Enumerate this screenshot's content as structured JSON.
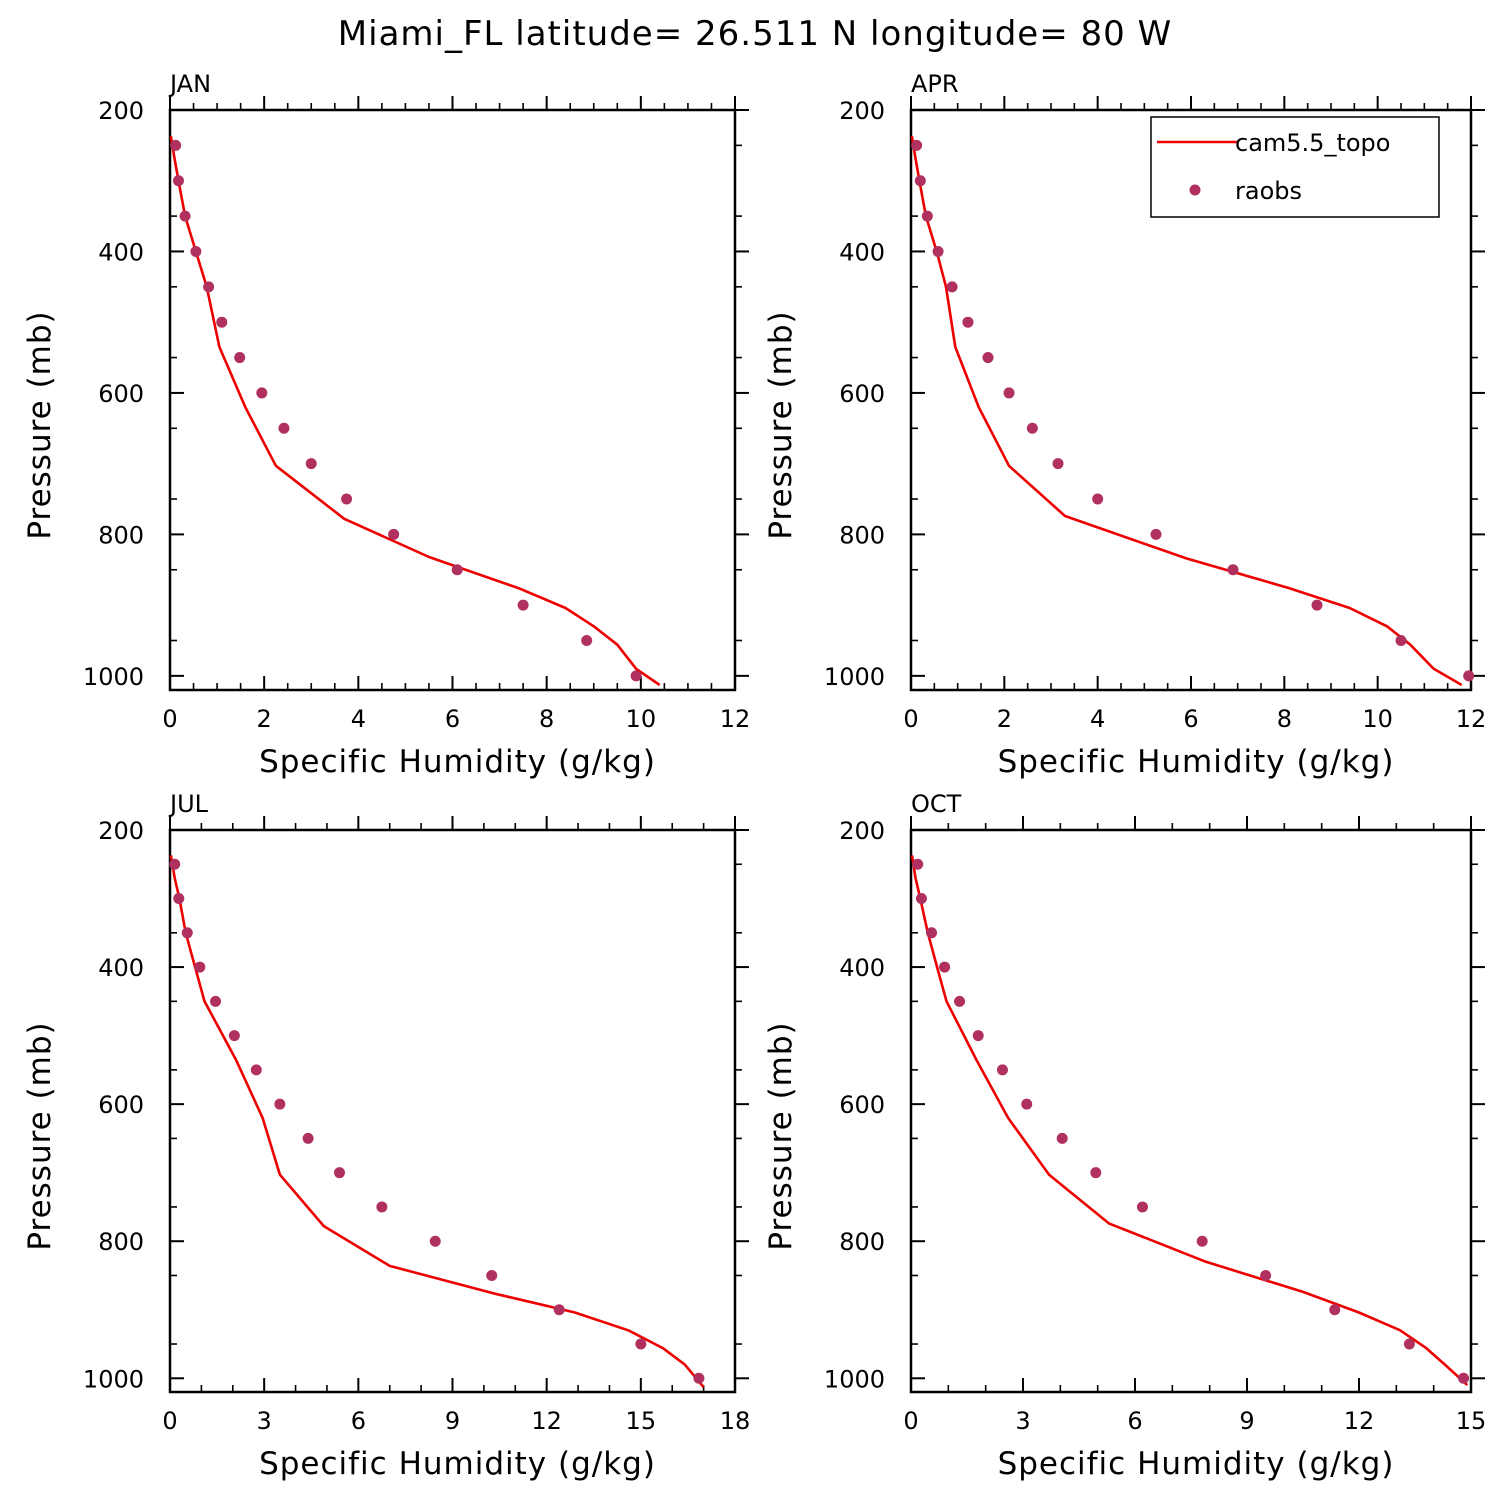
{
  "title": "Miami_FL  latitude= 26.511 N longitude= 80 W",
  "legend": {
    "items": [
      {
        "label": "cam5.5_topo",
        "type": "line",
        "color": "#ee0000"
      },
      {
        "label": "raobs",
        "type": "marker",
        "color": "#b03060"
      }
    ]
  },
  "chart_data": [
    {
      "type": "line",
      "panel": "JAN",
      "xlabel": "Specific Humidity (g/kg)",
      "ylabel": "Pressure (mb)",
      "xlim": [
        0,
        12
      ],
      "xticks": [
        0,
        2,
        4,
        6,
        8,
        10,
        12
      ],
      "ylim": [
        200,
        1020
      ],
      "yticks": [
        200,
        400,
        600,
        800,
        1000
      ],
      "y_inverted": true,
      "series": [
        {
          "name": "cam5.5_topo",
          "style": "line",
          "color": "#ee0000",
          "points": [
            [
              0.02,
              237
            ],
            [
              0.1,
              270
            ],
            [
              0.18,
              300
            ],
            [
              0.32,
              350
            ],
            [
              0.55,
              400
            ],
            [
              0.78,
              450
            ],
            [
              1.05,
              535
            ],
            [
              1.6,
              620
            ],
            [
              2.25,
              703
            ],
            [
              3.7,
              778
            ],
            [
              5.5,
              832
            ],
            [
              7.4,
              876
            ],
            [
              8.4,
              904
            ],
            [
              9.0,
              930
            ],
            [
              9.5,
              956
            ],
            [
              9.9,
              990
            ],
            [
              10.4,
              1013
            ]
          ]
        },
        {
          "name": "raobs",
          "style": "marker",
          "color": "#b03060",
          "points": [
            [
              0.12,
              250
            ],
            [
              0.18,
              300
            ],
            [
              0.32,
              350
            ],
            [
              0.55,
              400
            ],
            [
              0.82,
              450
            ],
            [
              1.1,
              500
            ],
            [
              1.48,
              550
            ],
            [
              1.95,
              600
            ],
            [
              2.42,
              650
            ],
            [
              3.0,
              700
            ],
            [
              3.75,
              750
            ],
            [
              4.75,
              800
            ],
            [
              6.1,
              850
            ],
            [
              7.5,
              900
            ],
            [
              8.85,
              950
            ],
            [
              9.9,
              1000
            ]
          ]
        }
      ]
    },
    {
      "type": "line",
      "panel": "APR",
      "xlabel": "Specific Humidity (g/kg)",
      "ylabel": "Pressure (mb)",
      "xlim": [
        0,
        12
      ],
      "xticks": [
        0,
        2,
        4,
        6,
        8,
        10,
        12
      ],
      "ylim": [
        200,
        1020
      ],
      "yticks": [
        200,
        400,
        600,
        800,
        1000
      ],
      "y_inverted": true,
      "series": [
        {
          "name": "cam5.5_topo",
          "style": "line",
          "color": "#ee0000",
          "points": [
            [
              0.02,
              237
            ],
            [
              0.1,
              270
            ],
            [
              0.18,
              300
            ],
            [
              0.32,
              350
            ],
            [
              0.55,
              400
            ],
            [
              0.75,
              450
            ],
            [
              0.95,
              535
            ],
            [
              1.45,
              620
            ],
            [
              2.1,
              703
            ],
            [
              3.3,
              774
            ],
            [
              5.9,
              834
            ],
            [
              8.1,
              876
            ],
            [
              9.4,
              904
            ],
            [
              10.2,
              930
            ],
            [
              10.7,
              956
            ],
            [
              11.2,
              990
            ],
            [
              11.8,
              1013
            ]
          ]
        },
        {
          "name": "raobs",
          "style": "marker",
          "color": "#b03060",
          "points": [
            [
              0.12,
              250
            ],
            [
              0.2,
              300
            ],
            [
              0.35,
              350
            ],
            [
              0.58,
              400
            ],
            [
              0.88,
              450
            ],
            [
              1.22,
              500
            ],
            [
              1.65,
              550
            ],
            [
              2.1,
              600
            ],
            [
              2.6,
              650
            ],
            [
              3.15,
              700
            ],
            [
              4.0,
              750
            ],
            [
              5.25,
              800
            ],
            [
              6.9,
              850
            ],
            [
              8.7,
              900
            ],
            [
              10.5,
              950
            ],
            [
              11.95,
              1000
            ]
          ]
        }
      ]
    },
    {
      "type": "line",
      "panel": "JUL",
      "xlabel": "Specific Humidity (g/kg)",
      "ylabel": "Pressure (mb)",
      "xlim": [
        0,
        18
      ],
      "xticks": [
        0,
        3,
        6,
        9,
        12,
        15,
        18
      ],
      "ylim": [
        200,
        1020
      ],
      "yticks": [
        200,
        400,
        600,
        800,
        1000
      ],
      "y_inverted": true,
      "series": [
        {
          "name": "cam5.5_topo",
          "style": "line",
          "color": "#ee0000",
          "points": [
            [
              0.03,
              237
            ],
            [
              0.15,
              270
            ],
            [
              0.3,
              300
            ],
            [
              0.5,
              350
            ],
            [
              0.8,
              400
            ],
            [
              1.1,
              450
            ],
            [
              2.1,
              535
            ],
            [
              2.95,
              620
            ],
            [
              3.5,
              703
            ],
            [
              4.9,
              778
            ],
            [
              7.0,
              836
            ],
            [
              10.3,
              876
            ],
            [
              12.9,
              904
            ],
            [
              14.6,
              930
            ],
            [
              15.7,
              956
            ],
            [
              16.4,
              980
            ],
            [
              17.0,
              1013
            ]
          ]
        },
        {
          "name": "raobs",
          "style": "marker",
          "color": "#b03060",
          "points": [
            [
              0.15,
              250
            ],
            [
              0.28,
              300
            ],
            [
              0.55,
              350
            ],
            [
              0.95,
              400
            ],
            [
              1.45,
              450
            ],
            [
              2.05,
              500
            ],
            [
              2.75,
              550
            ],
            [
              3.5,
              600
            ],
            [
              4.4,
              650
            ],
            [
              5.4,
              700
            ],
            [
              6.75,
              750
            ],
            [
              8.45,
              800
            ],
            [
              10.25,
              850
            ],
            [
              12.4,
              900
            ],
            [
              15.0,
              950
            ],
            [
              16.85,
              1000
            ]
          ]
        }
      ]
    },
    {
      "type": "line",
      "panel": "OCT",
      "xlabel": "Specific Humidity (g/kg)",
      "ylabel": "Pressure (mb)",
      "xlim": [
        0,
        15
      ],
      "xticks": [
        0,
        3,
        6,
        9,
        12,
        15
      ],
      "ylim": [
        200,
        1020
      ],
      "yticks": [
        200,
        400,
        600,
        800,
        1000
      ],
      "y_inverted": true,
      "series": [
        {
          "name": "cam5.5_topo",
          "style": "line",
          "color": "#ee0000",
          "points": [
            [
              0.03,
              237
            ],
            [
              0.12,
              270
            ],
            [
              0.25,
              300
            ],
            [
              0.45,
              350
            ],
            [
              0.7,
              400
            ],
            [
              0.95,
              450
            ],
            [
              1.75,
              535
            ],
            [
              2.6,
              620
            ],
            [
              3.7,
              703
            ],
            [
              5.3,
              774
            ],
            [
              7.9,
              830
            ],
            [
              10.5,
              874
            ],
            [
              12.0,
              904
            ],
            [
              13.1,
              930
            ],
            [
              13.8,
              956
            ],
            [
              14.3,
              980
            ],
            [
              14.9,
              1010
            ]
          ]
        },
        {
          "name": "raobs",
          "style": "marker",
          "color": "#b03060",
          "points": [
            [
              0.18,
              250
            ],
            [
              0.28,
              300
            ],
            [
              0.55,
              350
            ],
            [
              0.9,
              400
            ],
            [
              1.3,
              450
            ],
            [
              1.8,
              500
            ],
            [
              2.45,
              550
            ],
            [
              3.1,
              600
            ],
            [
              4.05,
              650
            ],
            [
              4.95,
              700
            ],
            [
              6.2,
              750
            ],
            [
              7.8,
              800
            ],
            [
              9.5,
              850
            ],
            [
              11.35,
              900
            ],
            [
              13.35,
              950
            ],
            [
              14.8,
              1000
            ]
          ]
        }
      ]
    }
  ]
}
